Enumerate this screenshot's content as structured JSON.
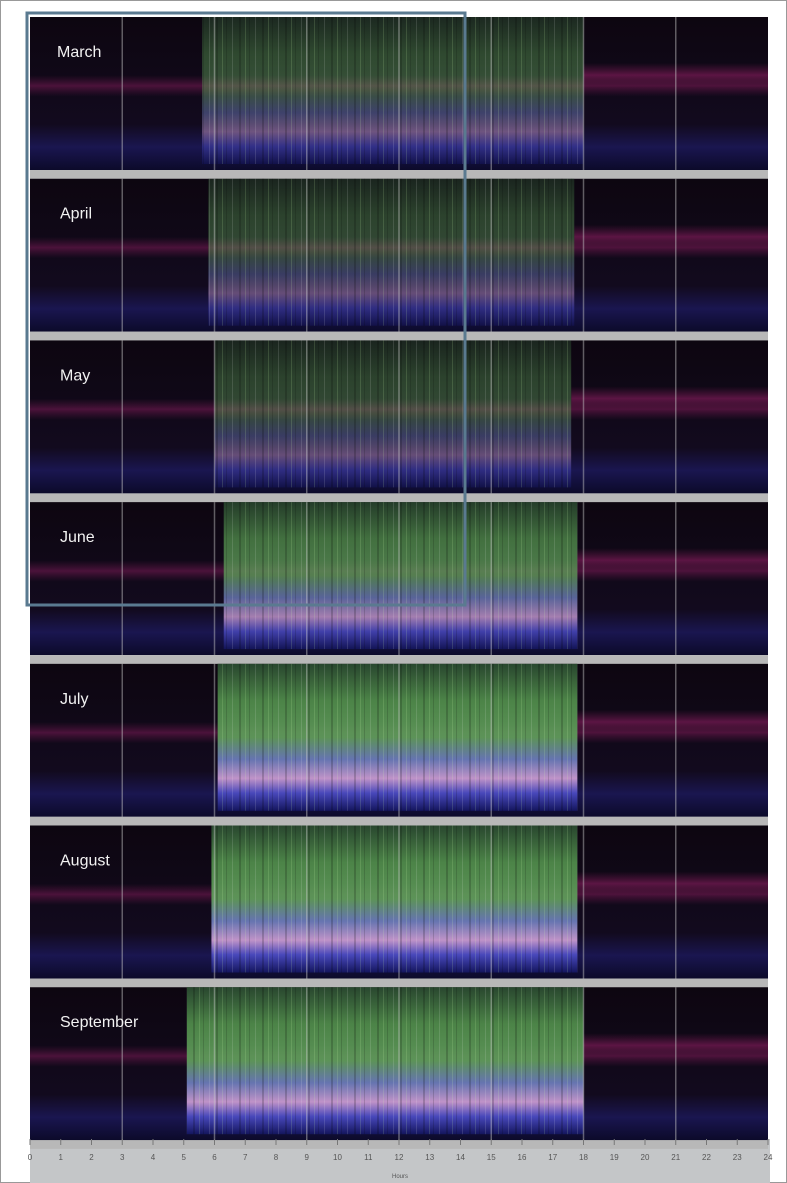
{
  "panels": [
    {
      "label": "March"
    },
    {
      "label": "April"
    },
    {
      "label": "May"
    },
    {
      "label": "June"
    },
    {
      "label": "July"
    },
    {
      "label": "August"
    },
    {
      "label": "September"
    }
  ],
  "axis": {
    "ticks": [
      "0",
      "1",
      "2",
      "3",
      "4",
      "5",
      "6",
      "7",
      "8",
      "9",
      "10",
      "11",
      "12",
      "13",
      "14",
      "15",
      "16",
      "17",
      "18",
      "19",
      "20",
      "21",
      "22",
      "23",
      "24"
    ],
    "title": "Hours"
  }
}
